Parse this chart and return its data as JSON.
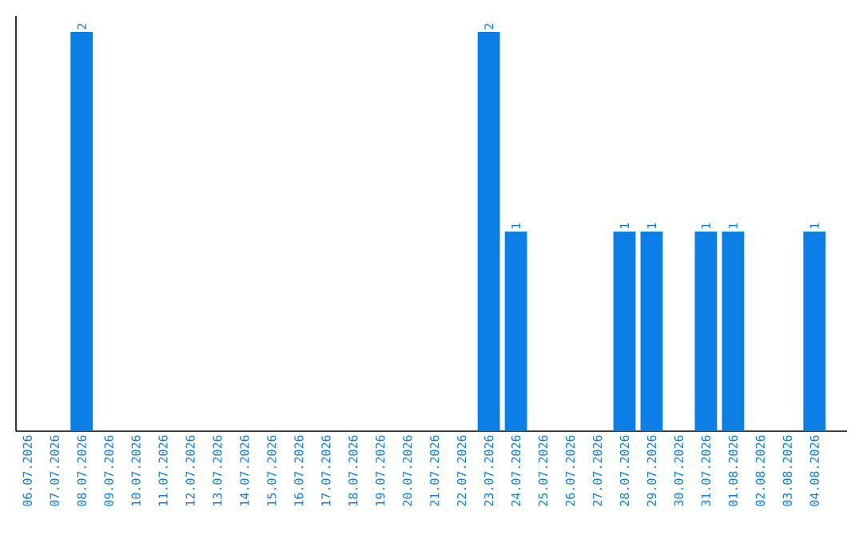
{
  "chart_data": {
    "type": "bar",
    "categories": [
      "06.07.2026",
      "07.07.2026",
      "08.07.2026",
      "09.07.2026",
      "10.07.2026",
      "11.07.2026",
      "12.07.2026",
      "13.07.2026",
      "14.07.2026",
      "15.07.2026",
      "16.07.2026",
      "17.07.2026",
      "18.07.2026",
      "19.07.2026",
      "20.07.2026",
      "21.07.2026",
      "22.07.2026",
      "23.07.2026",
      "24.07.2026",
      "25.07.2026",
      "26.07.2026",
      "27.07.2026",
      "28.07.2026",
      "29.07.2026",
      "30.07.2026",
      "31.07.2026",
      "01.08.2026",
      "02.08.2026",
      "03.08.2026",
      "04.08.2026"
    ],
    "values": [
      0,
      0,
      2,
      0,
      0,
      0,
      0,
      0,
      0,
      0,
      0,
      0,
      0,
      0,
      0,
      0,
      0,
      2,
      1,
      0,
      0,
      0,
      1,
      1,
      0,
      1,
      1,
      0,
      0,
      1
    ],
    "value_labels": [
      null,
      null,
      "2",
      null,
      null,
      null,
      null,
      null,
      null,
      null,
      null,
      null,
      null,
      null,
      null,
      null,
      null,
      "2",
      "1",
      null,
      null,
      null,
      "1",
      "1",
      null,
      "1",
      "1",
      null,
      null,
      "1"
    ],
    "color": "#0a7fe6",
    "ylim": [
      0,
      2.08
    ]
  }
}
